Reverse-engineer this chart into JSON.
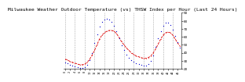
{
  "title": "Milwaukee Weather Outdoor Temperature (vs) THSW Index per Hour (Last 24 Hours)",
  "title_fontsize": 4.5,
  "red_line_color": "#dd0000",
  "blue_line_color": "#0000cc",
  "background_color": "#ffffff",
  "grid_color": "#aaaaaa",
  "ylim": [
    20,
    90
  ],
  "yticks": [
    20,
    30,
    40,
    50,
    60,
    70,
    80,
    90
  ],
  "n_hours": 48,
  "red_values": [
    32,
    31,
    29,
    28,
    27,
    26,
    25,
    25,
    26,
    28,
    32,
    37,
    43,
    50,
    57,
    62,
    65,
    67,
    68,
    68,
    67,
    64,
    59,
    54,
    50,
    46,
    43,
    40,
    38,
    36,
    35,
    34,
    33,
    33,
    34,
    36,
    40,
    45,
    51,
    57,
    62,
    65,
    66,
    65,
    62,
    57,
    52,
    48
  ],
  "blue_values": [
    28,
    27,
    25,
    24,
    23,
    22,
    21,
    21,
    22,
    25,
    31,
    40,
    52,
    63,
    73,
    79,
    82,
    83,
    82,
    79,
    74,
    67,
    58,
    49,
    43,
    38,
    34,
    31,
    29,
    27,
    26,
    25,
    24,
    24,
    26,
    30,
    37,
    47,
    58,
    67,
    74,
    78,
    78,
    75,
    69,
    61,
    53,
    46
  ]
}
